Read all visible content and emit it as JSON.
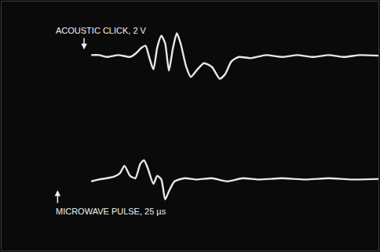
{
  "chart_data": {
    "type": "line",
    "annotations": [
      "ACOUSTIC CLICK, 2 V",
      "MICROWAVE PULSE, 25 µs"
    ],
    "xlim": [
      0,
      100
    ],
    "ylim": [
      -20,
      20
    ],
    "grid": false,
    "tick_labels": false,
    "series": [
      {
        "name": "ACOUSTIC CLICK, 2 V",
        "color": "#e8e8e8",
        "x": [
          23.8,
          25.8,
          27.9,
          31.0,
          34.1,
          35.5,
          37.2,
          38.2,
          39.3,
          40.3,
          41.3,
          42.4,
          43.4,
          44.4,
          45.5,
          46.5,
          47.5,
          49.0,
          50.2,
          51.7,
          53.7,
          55.8,
          57.9,
          59.3,
          61.0,
          63.0,
          66.1,
          70.2,
          74.4,
          78.5,
          82.6,
          86.8,
          90.9,
          95.0,
          100
        ],
        "values": [
          11.4,
          11.4,
          11.1,
          11.4,
          11.1,
          11.6,
          12.6,
          12.9,
          10.8,
          9.1,
          12.6,
          14.5,
          13.3,
          8.9,
          12.6,
          14.9,
          13.3,
          9.5,
          7.9,
          8.9,
          10.1,
          9.5,
          7.6,
          8.3,
          10.4,
          11.1,
          10.9,
          11.4,
          11.1,
          11.4,
          11.1,
          11.4,
          11.1,
          11.4,
          11.3
        ]
      },
      {
        "name": "MICROWAVE PULSE, 25 µs",
        "color": "#e8e8e8",
        "x": [
          23.8,
          25.8,
          27.9,
          30.0,
          31.4,
          32.6,
          34.1,
          35.5,
          36.8,
          37.8,
          38.8,
          40.3,
          41.3,
          42.4,
          43.4,
          44.4,
          45.9,
          48.6,
          51.7,
          55.8,
          59.9,
          64.0,
          68.2,
          74.4,
          80.6,
          86.8,
          93.0,
          100
        ],
        "values": [
          -8.9,
          -8.6,
          -8.4,
          -8.1,
          -7.6,
          -6.4,
          -8.0,
          -8.4,
          -6.1,
          -5.5,
          -6.8,
          -9.3,
          -8.0,
          -8.6,
          -11.8,
          -10.5,
          -8.9,
          -8.4,
          -8.6,
          -8.4,
          -8.9,
          -8.4,
          -8.6,
          -8.4,
          -8.6,
          -8.4,
          -8.6,
          -8.5
        ]
      }
    ]
  }
}
